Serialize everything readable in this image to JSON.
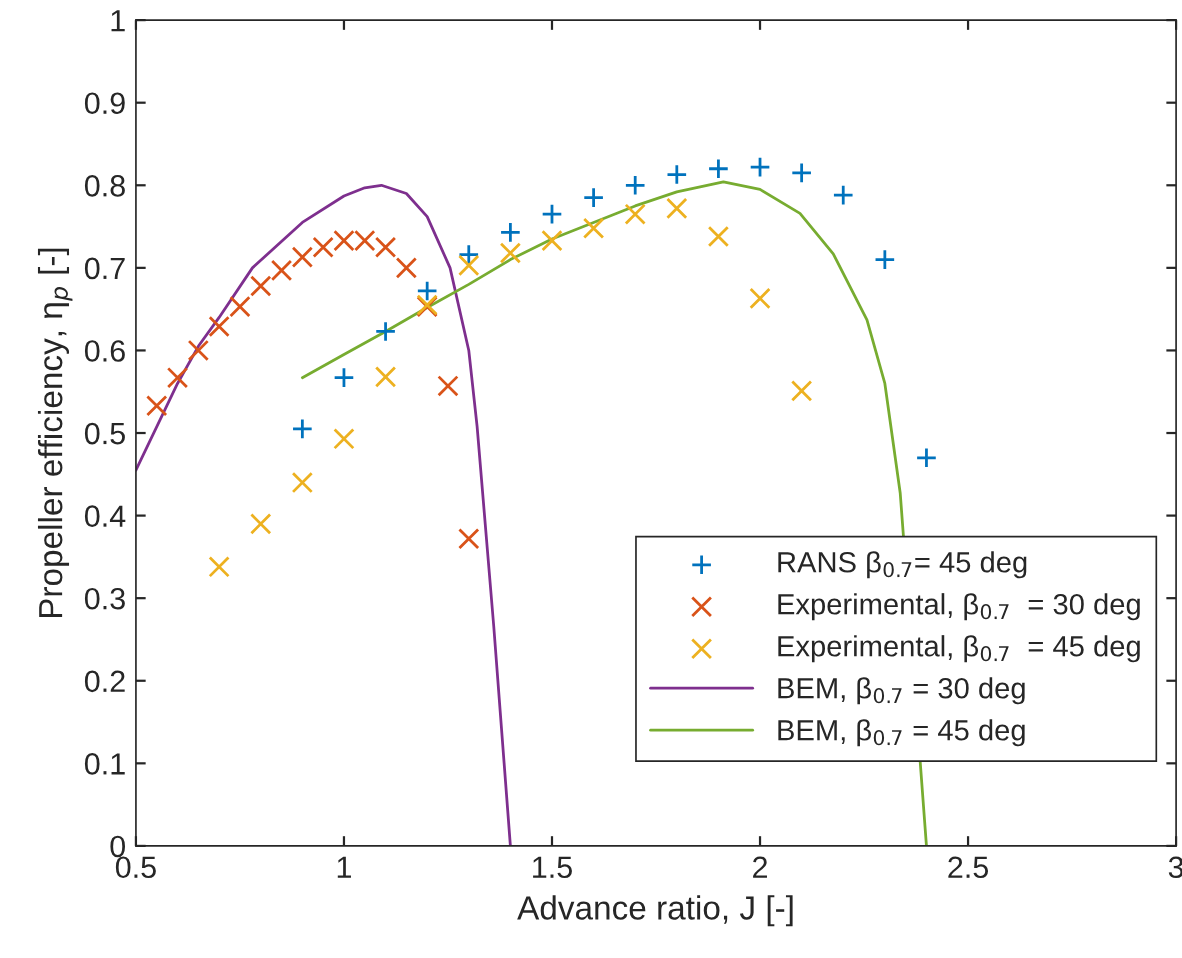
{
  "chart_data": {
    "type": "scatter",
    "xlabel": "Advance ratio, J [-]",
    "ylabel": "Propeller efficiency, η$_{p}$ [-]",
    "xlim": [
      0.5,
      3
    ],
    "xticks": [
      0.5,
      1,
      1.5,
      2,
      2.5,
      3
    ],
    "ylim": [
      0,
      1
    ],
    "yticks": [
      0,
      0.1,
      0.2,
      0.3,
      0.4,
      0.5,
      0.6,
      0.7,
      0.8,
      0.9,
      1
    ],
    "grid": false,
    "legend": "lower right",
    "series": [
      {
        "name": "RANS β$_{0.7}$= 45 deg",
        "marker": "plus",
        "color": "#0072bd",
        "x": [
          0.9,
          1.0,
          1.1,
          1.2,
          1.3,
          1.4,
          1.5,
          1.6,
          1.7,
          1.8,
          1.9,
          2.0,
          2.1,
          2.2,
          2.3,
          2.4
        ],
        "values": [
          0.505,
          0.567,
          0.623,
          0.672,
          0.716,
          0.743,
          0.765,
          0.785,
          0.8,
          0.813,
          0.82,
          0.822,
          0.815,
          0.788,
          0.71,
          0.47
        ]
      },
      {
        "name": "Experimental, β$_{0.7}$  = 30 deg",
        "marker": "cross",
        "color": "#d95319",
        "x": [
          0.55,
          0.6,
          0.65,
          0.7,
          0.75,
          0.8,
          0.85,
          0.9,
          0.95,
          1.0,
          1.05,
          1.1,
          1.15,
          1.2,
          1.25,
          1.3
        ],
        "values": [
          0.533,
          0.567,
          0.6,
          0.629,
          0.653,
          0.678,
          0.697,
          0.713,
          0.725,
          0.733,
          0.733,
          0.725,
          0.7,
          0.653,
          0.557,
          0.372
        ]
      },
      {
        "name": "Experimental, β$_{0.7}$  = 45 deg",
        "marker": "cross",
        "color": "#edb120",
        "x": [
          0.7,
          0.8,
          0.9,
          1.0,
          1.1,
          1.2,
          1.3,
          1.4,
          1.5,
          1.6,
          1.7,
          1.8,
          1.9,
          2.0,
          2.1
        ],
        "values": [
          0.338,
          0.39,
          0.44,
          0.493,
          0.568,
          0.655,
          0.703,
          0.718,
          0.733,
          0.748,
          0.765,
          0.772,
          0.738,
          0.663,
          0.551
        ]
      },
      {
        "name": "BEM, β$_{0.7}$ = 30 deg",
        "type": "line",
        "marker": "none",
        "line_style": "solid",
        "color": "#7e2f8e",
        "x": [
          0.5,
          0.6,
          0.65,
          0.7,
          0.78,
          0.9,
          1.0,
          1.05,
          1.09,
          1.15,
          1.2,
          1.255,
          1.3,
          1.32,
          1.36,
          1.4
        ],
        "values": [
          0.455,
          0.56,
          0.605,
          0.64,
          0.7,
          0.755,
          0.787,
          0.797,
          0.8,
          0.79,
          0.762,
          0.7,
          0.6,
          0.508,
          0.266,
          0
        ]
      },
      {
        "name": "BEM, β$_{0.7}$ = 45 deg",
        "type": "line",
        "marker": "none",
        "line_style": "solid",
        "color": "#77ac30",
        "x": [
          0.9,
          1.0,
          1.1,
          1.2,
          1.3,
          1.4,
          1.5,
          1.6,
          1.7,
          1.8,
          1.912,
          2.0,
          2.096,
          2.176,
          2.257,
          2.3,
          2.337,
          2.4
        ],
        "values": [
          0.567,
          0.595,
          0.623,
          0.652,
          0.68,
          0.71,
          0.735,
          0.755,
          0.775,
          0.792,
          0.804,
          0.795,
          0.766,
          0.717,
          0.637,
          0.56,
          0.427,
          0
        ]
      }
    ]
  }
}
